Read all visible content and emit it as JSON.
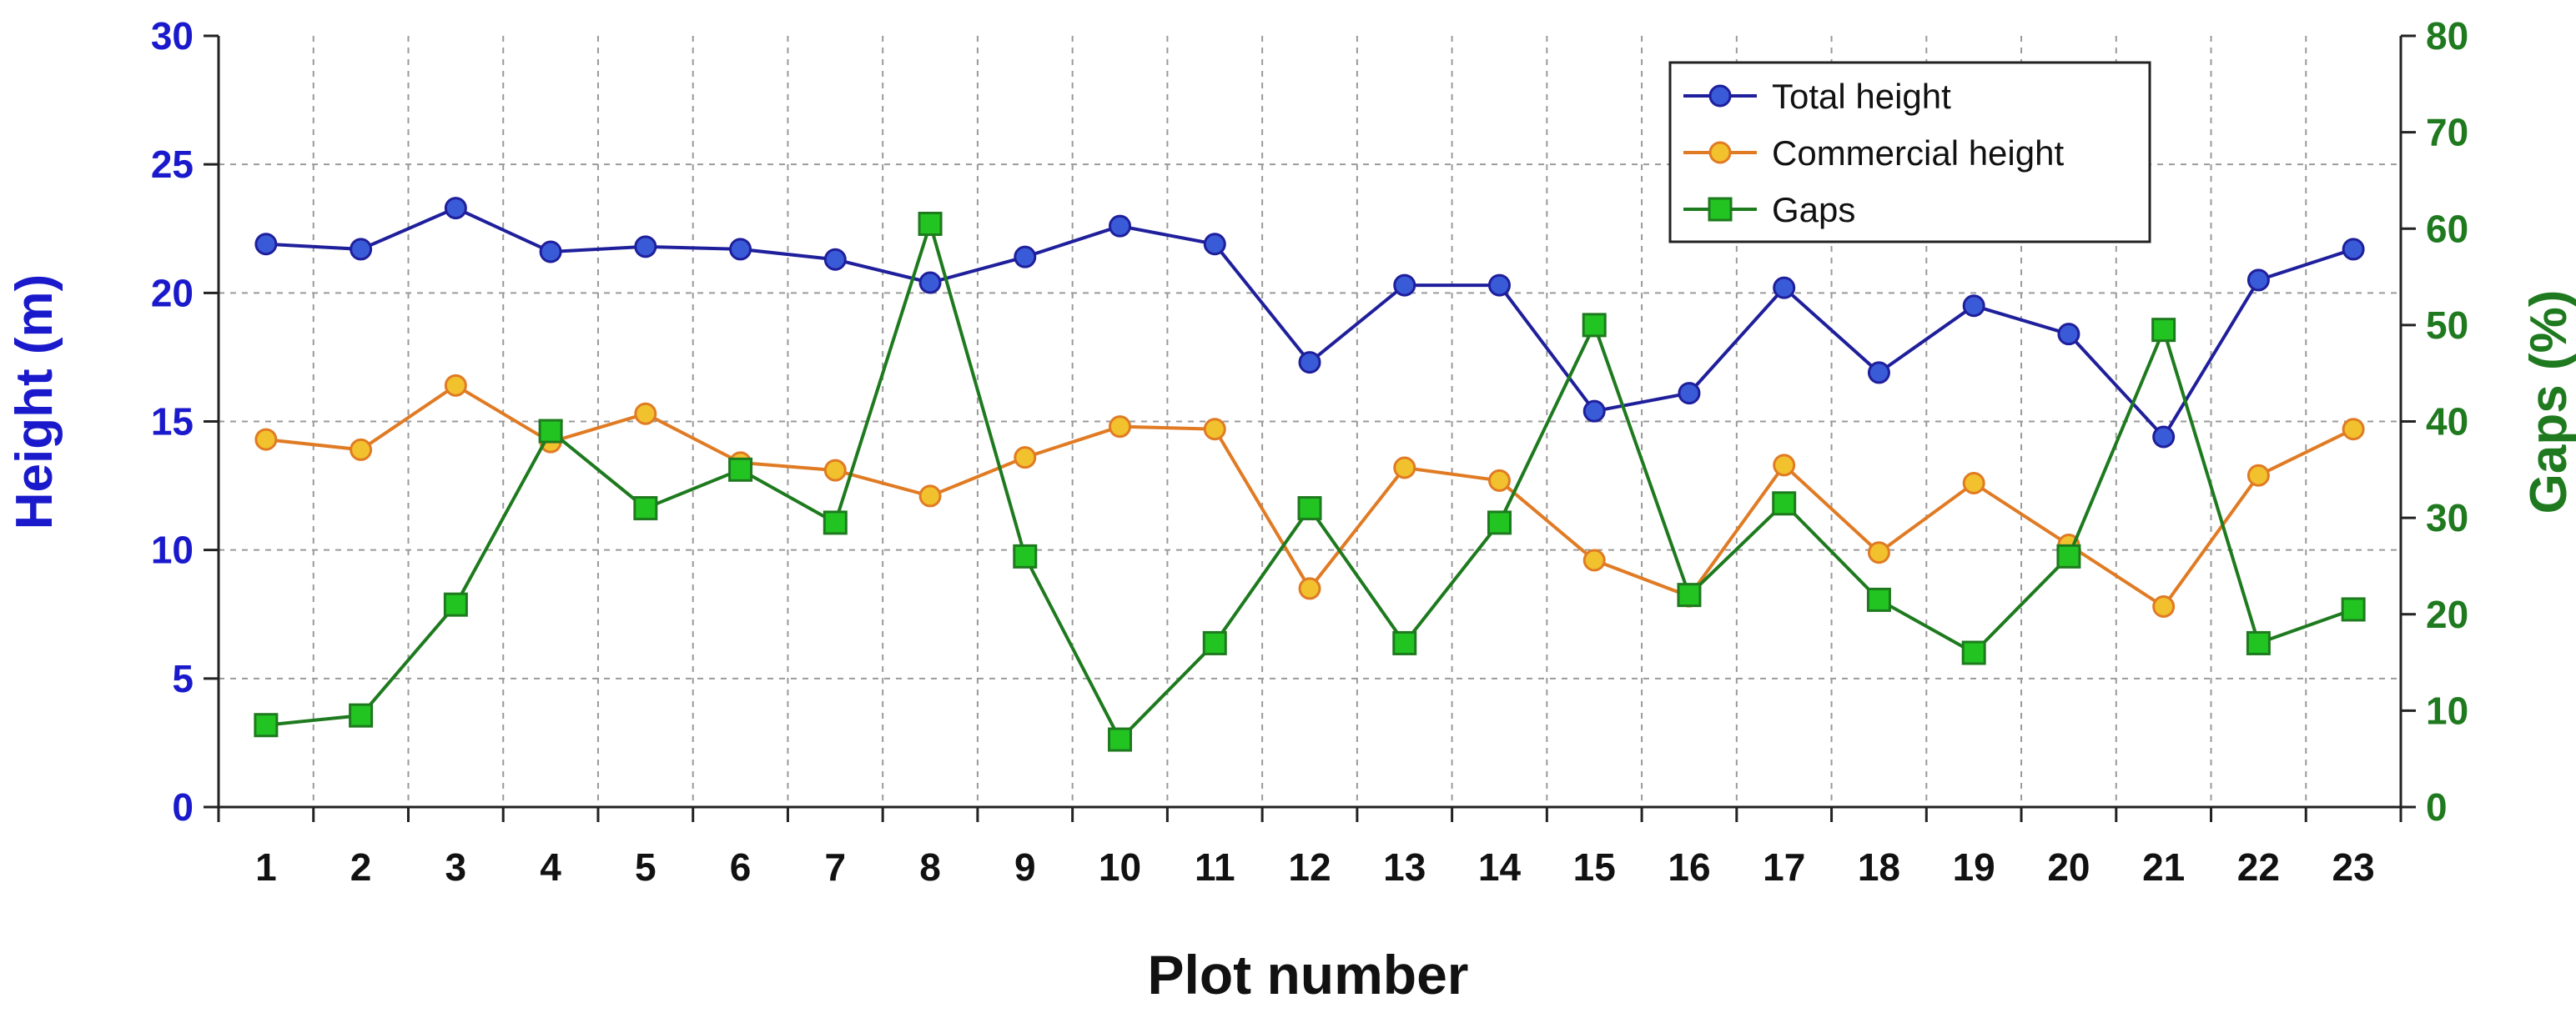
{
  "chart_data": {
    "type": "line",
    "title": "",
    "xlabel": "Plot number",
    "ylabel": "Height (m)",
    "y2label": "Gaps (%)",
    "categories": [
      "1",
      "2",
      "3",
      "4",
      "5",
      "6",
      "7",
      "8",
      "9",
      "10",
      "11",
      "12",
      "13",
      "14",
      "15",
      "16",
      "17",
      "18",
      "19",
      "20",
      "21",
      "22",
      "23"
    ],
    "ylim": [
      0,
      30
    ],
    "y2lim": [
      0,
      80
    ],
    "yticks": [
      "0",
      "5",
      "10",
      "15",
      "20",
      "25",
      "30"
    ],
    "y2ticks": [
      "0",
      "10",
      "20",
      "30",
      "40",
      "50",
      "60",
      "70",
      "80"
    ],
    "grid": true,
    "legend_position": "top-right",
    "series": [
      {
        "name": "Total height",
        "axis": "left",
        "marker": "circle",
        "color": "#1f1f9c",
        "fill": "#3a5bd8",
        "values": [
          21.9,
          21.7,
          23.3,
          21.6,
          21.8,
          21.7,
          21.3,
          20.4,
          21.4,
          22.6,
          21.9,
          17.3,
          20.3,
          20.3,
          15.4,
          16.1,
          20.2,
          16.9,
          19.5,
          18.4,
          14.4,
          20.5,
          21.7
        ]
      },
      {
        "name": "Commercial height",
        "axis": "left",
        "marker": "circle",
        "color": "#e07b24",
        "fill": "#f2c12e",
        "values": [
          14.3,
          13.9,
          16.4,
          14.2,
          15.3,
          13.4,
          13.1,
          12.1,
          13.6,
          14.8,
          14.7,
          8.5,
          13.2,
          12.7,
          9.6,
          8.2,
          13.3,
          9.9,
          12.6,
          10.2,
          7.8,
          12.9,
          14.7
        ]
      },
      {
        "name": "Gaps",
        "axis": "right",
        "marker": "square",
        "color": "#1e7a1e",
        "fill": "#22c422",
        "values": [
          8.5,
          9.5,
          21,
          39,
          31,
          35,
          29.5,
          60.5,
          26,
          7,
          17,
          31,
          17,
          29.5,
          50,
          22,
          31.5,
          21.5,
          16,
          26,
          49.5,
          17,
          20.5
        ]
      }
    ]
  }
}
